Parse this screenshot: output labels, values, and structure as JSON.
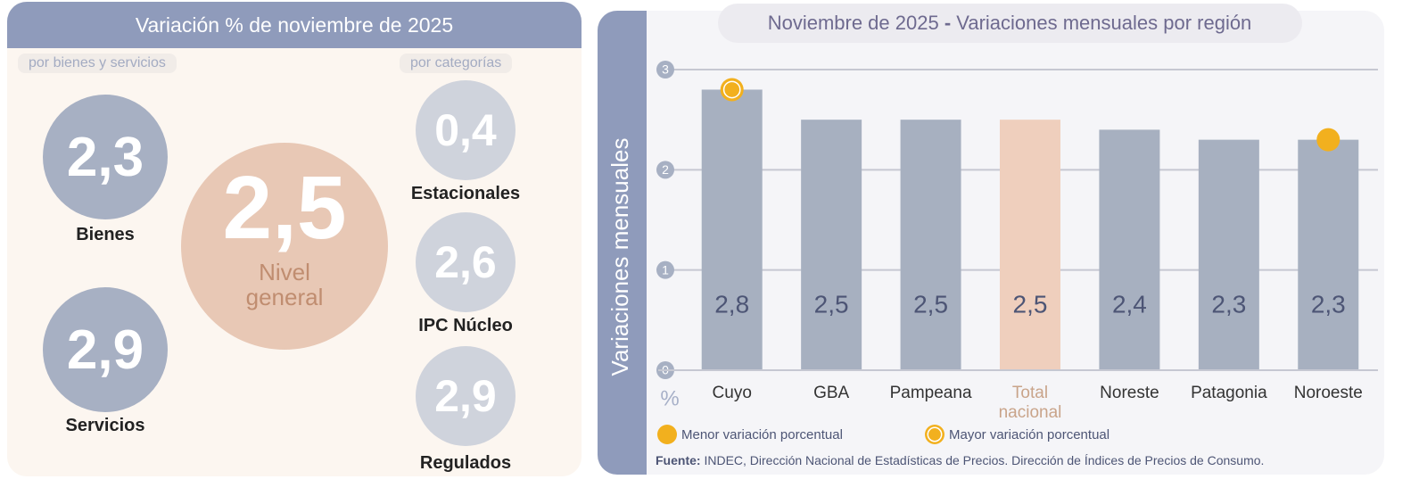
{
  "panel": {
    "title": "Variación % de noviembre de 2025",
    "left_tag": "por bienes y servicios",
    "right_tag": "por categorías",
    "general": {
      "value": "2,5",
      "label": "Nivel general"
    },
    "left_items": [
      {
        "value": "2,3",
        "label": "Bienes"
      },
      {
        "value": "2,9",
        "label": "Servicios"
      }
    ],
    "right_items": [
      {
        "value": "0,4",
        "label": "Estacionales"
      },
      {
        "value": "2,6",
        "label": "IPC Núcleo"
      },
      {
        "value": "2,9",
        "label": "Regulados"
      }
    ]
  },
  "chart_data": {
    "type": "bar",
    "title_parts": [
      "Noviembre de 2025",
      "-",
      "Variaciones mensuales por región"
    ],
    "y_label": "Variaciones mensuales",
    "unit_label": "%",
    "categories": [
      "Cuyo",
      "GBA",
      "Pampeana",
      "Total nacional",
      "Noreste",
      "Patagonia",
      "Noroeste"
    ],
    "values": [
      2.8,
      2.5,
      2.5,
      2.5,
      2.4,
      2.3,
      2.3
    ],
    "value_labels": [
      "2,8",
      "2,5",
      "2,5",
      "2,5",
      "2,4",
      "2,3",
      "2,3"
    ],
    "colors": [
      "#a7b0c0",
      "#a7b0c0",
      "#a7b0c0",
      "#efcfbd",
      "#a7b0c0",
      "#a7b0c0",
      "#a7b0c0"
    ],
    "ylim": [
      0,
      3
    ],
    "yticks": [
      0,
      1,
      2,
      3
    ],
    "grid": true,
    "markers": [
      {
        "name": "Menor variación porcentual",
        "category": "Noroeste",
        "style": "dot",
        "color": "#f2b01e"
      },
      {
        "name": "Mayor variación porcentual",
        "category": "Cuyo",
        "style": "ring",
        "color": "#f2b01e"
      }
    ],
    "source": {
      "label": "Fuente:",
      "text": "INDEC, Dirección Nacional de Estadísticas de Precios. Dirección de Índices de Precios de Consumo."
    }
  }
}
